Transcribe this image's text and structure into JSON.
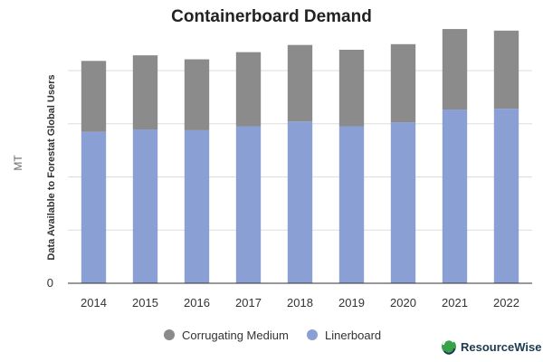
{
  "chart_data": {
    "type": "bar",
    "stacked": true,
    "title": "Containerboard Demand",
    "xlabel": "",
    "ylabel": "Data Available to Forestat Global Users",
    "unit_label": "MT",
    "ylim": [
      0,
      310
    ],
    "y_ticks": [
      0
    ],
    "categories": [
      "2014",
      "2015",
      "2016",
      "2017",
      "2018",
      "2019",
      "2020",
      "2021",
      "2022"
    ],
    "series": [
      {
        "name": "Linerboard",
        "color": "#8a9fd4",
        "values": [
          190,
          193,
          192,
          197,
          203,
          197,
          202,
          218,
          219
        ]
      },
      {
        "name": "Corrugating Medium",
        "color": "#8b8b8c",
        "values": [
          89,
          93,
          89,
          93,
          96,
          96,
          98,
          101,
          98
        ]
      }
    ],
    "legend_position": "bottom-center",
    "legend_order": [
      "Corrugating Medium",
      "Linerboard"
    ],
    "grid": true
  },
  "branding": {
    "name": "ResourceWise",
    "color": "#1c3a4f",
    "icon": "resourcewise-logo-icon"
  }
}
